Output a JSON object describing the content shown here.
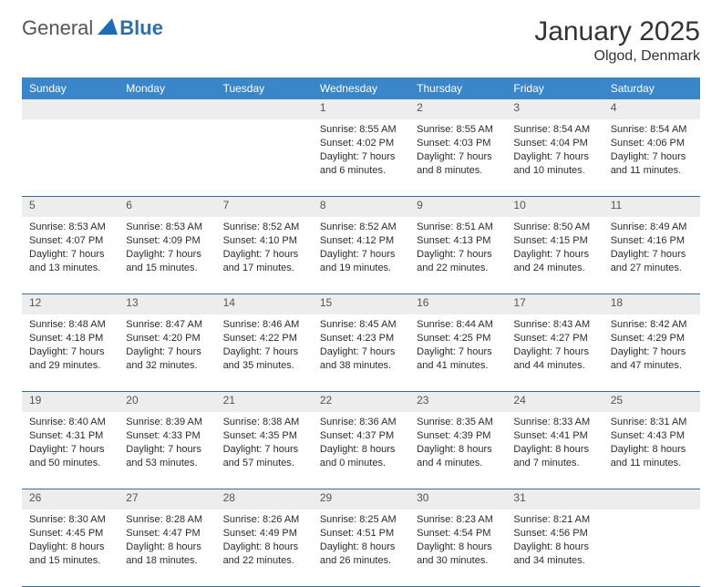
{
  "brand": {
    "part1": "General",
    "part2": "Blue"
  },
  "title": "January 2025",
  "location": "Olgod, Denmark",
  "colors": {
    "header_bg": "#3a86c8",
    "header_text": "#ffffff",
    "daynum_bg": "#ededed",
    "cell_border": "#3a6a9a",
    "brand_accent": "#2f6fa7",
    "logo_mark": "#1f6bb5"
  },
  "weekdays": [
    "Sunday",
    "Monday",
    "Tuesday",
    "Wednesday",
    "Thursday",
    "Friday",
    "Saturday"
  ],
  "weeks": [
    [
      null,
      null,
      null,
      {
        "n": "1",
        "sr": "8:55 AM",
        "ss": "4:02 PM",
        "dl": "7 hours and 6 minutes."
      },
      {
        "n": "2",
        "sr": "8:55 AM",
        "ss": "4:03 PM",
        "dl": "7 hours and 8 minutes."
      },
      {
        "n": "3",
        "sr": "8:54 AM",
        "ss": "4:04 PM",
        "dl": "7 hours and 10 minutes."
      },
      {
        "n": "4",
        "sr": "8:54 AM",
        "ss": "4:06 PM",
        "dl": "7 hours and 11 minutes."
      }
    ],
    [
      {
        "n": "5",
        "sr": "8:53 AM",
        "ss": "4:07 PM",
        "dl": "7 hours and 13 minutes."
      },
      {
        "n": "6",
        "sr": "8:53 AM",
        "ss": "4:09 PM",
        "dl": "7 hours and 15 minutes."
      },
      {
        "n": "7",
        "sr": "8:52 AM",
        "ss": "4:10 PM",
        "dl": "7 hours and 17 minutes."
      },
      {
        "n": "8",
        "sr": "8:52 AM",
        "ss": "4:12 PM",
        "dl": "7 hours and 19 minutes."
      },
      {
        "n": "9",
        "sr": "8:51 AM",
        "ss": "4:13 PM",
        "dl": "7 hours and 22 minutes."
      },
      {
        "n": "10",
        "sr": "8:50 AM",
        "ss": "4:15 PM",
        "dl": "7 hours and 24 minutes."
      },
      {
        "n": "11",
        "sr": "8:49 AM",
        "ss": "4:16 PM",
        "dl": "7 hours and 27 minutes."
      }
    ],
    [
      {
        "n": "12",
        "sr": "8:48 AM",
        "ss": "4:18 PM",
        "dl": "7 hours and 29 minutes."
      },
      {
        "n": "13",
        "sr": "8:47 AM",
        "ss": "4:20 PM",
        "dl": "7 hours and 32 minutes."
      },
      {
        "n": "14",
        "sr": "8:46 AM",
        "ss": "4:22 PM",
        "dl": "7 hours and 35 minutes."
      },
      {
        "n": "15",
        "sr": "8:45 AM",
        "ss": "4:23 PM",
        "dl": "7 hours and 38 minutes."
      },
      {
        "n": "16",
        "sr": "8:44 AM",
        "ss": "4:25 PM",
        "dl": "7 hours and 41 minutes."
      },
      {
        "n": "17",
        "sr": "8:43 AM",
        "ss": "4:27 PM",
        "dl": "7 hours and 44 minutes."
      },
      {
        "n": "18",
        "sr": "8:42 AM",
        "ss": "4:29 PM",
        "dl": "7 hours and 47 minutes."
      }
    ],
    [
      {
        "n": "19",
        "sr": "8:40 AM",
        "ss": "4:31 PM",
        "dl": "7 hours and 50 minutes."
      },
      {
        "n": "20",
        "sr": "8:39 AM",
        "ss": "4:33 PM",
        "dl": "7 hours and 53 minutes."
      },
      {
        "n": "21",
        "sr": "8:38 AM",
        "ss": "4:35 PM",
        "dl": "7 hours and 57 minutes."
      },
      {
        "n": "22",
        "sr": "8:36 AM",
        "ss": "4:37 PM",
        "dl": "8 hours and 0 minutes."
      },
      {
        "n": "23",
        "sr": "8:35 AM",
        "ss": "4:39 PM",
        "dl": "8 hours and 4 minutes."
      },
      {
        "n": "24",
        "sr": "8:33 AM",
        "ss": "4:41 PM",
        "dl": "8 hours and 7 minutes."
      },
      {
        "n": "25",
        "sr": "8:31 AM",
        "ss": "4:43 PM",
        "dl": "8 hours and 11 minutes."
      }
    ],
    [
      {
        "n": "26",
        "sr": "8:30 AM",
        "ss": "4:45 PM",
        "dl": "8 hours and 15 minutes."
      },
      {
        "n": "27",
        "sr": "8:28 AM",
        "ss": "4:47 PM",
        "dl": "8 hours and 18 minutes."
      },
      {
        "n": "28",
        "sr": "8:26 AM",
        "ss": "4:49 PM",
        "dl": "8 hours and 22 minutes."
      },
      {
        "n": "29",
        "sr": "8:25 AM",
        "ss": "4:51 PM",
        "dl": "8 hours and 26 minutes."
      },
      {
        "n": "30",
        "sr": "8:23 AM",
        "ss": "4:54 PM",
        "dl": "8 hours and 30 minutes."
      },
      {
        "n": "31",
        "sr": "8:21 AM",
        "ss": "4:56 PM",
        "dl": "8 hours and 34 minutes."
      },
      null
    ]
  ],
  "labels": {
    "sunrise": "Sunrise: ",
    "sunset": "Sunset: ",
    "daylight": "Daylight: "
  }
}
